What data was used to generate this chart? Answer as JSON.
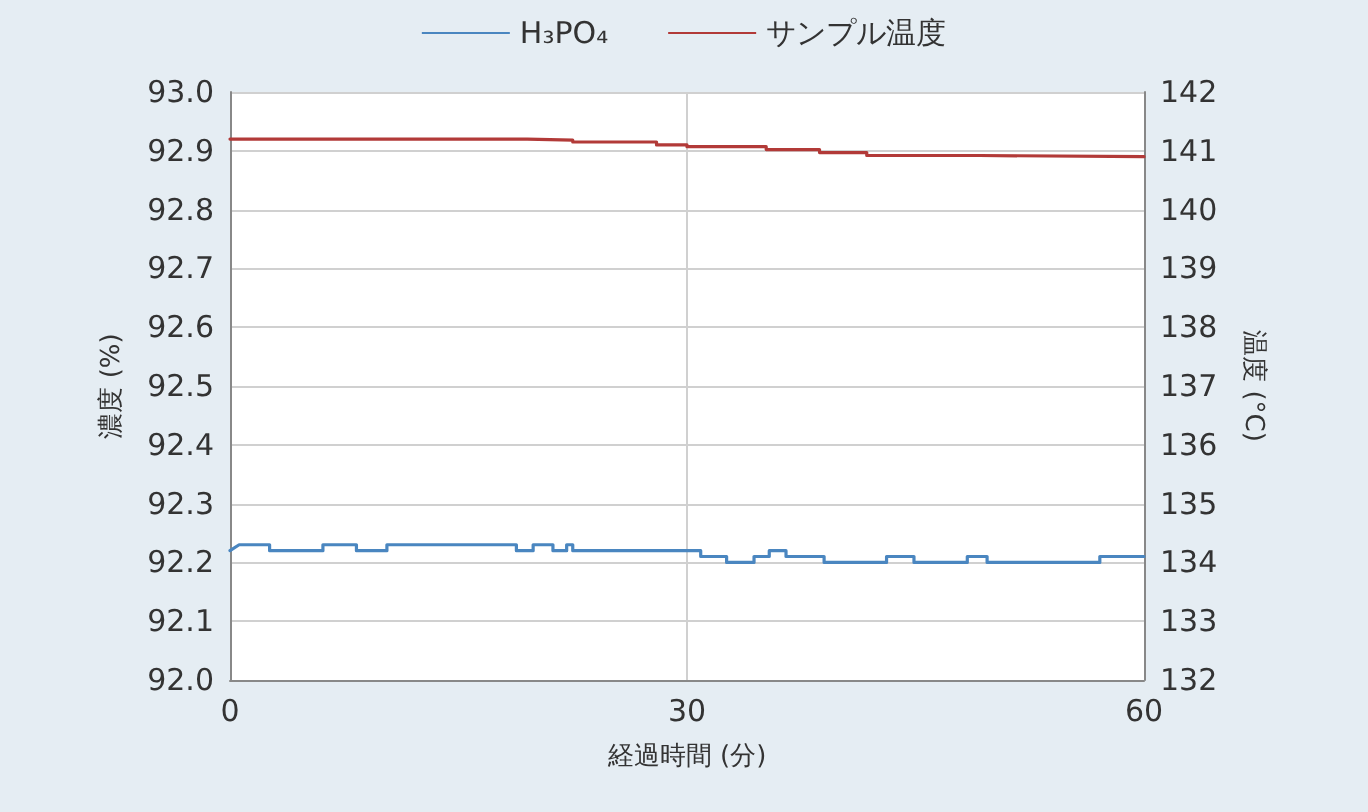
{
  "chart_data": {
    "type": "line",
    "xlabel": "経過時間 (分)",
    "ylabel": "濃度 (%)",
    "y2label": "温度 (°C)",
    "xlim": [
      0,
      60
    ],
    "xticks": [
      0,
      30,
      60
    ],
    "ylim": [
      92.0,
      93.0
    ],
    "yticks": [
      {
        "value": 92.0,
        "label": "92.0"
      },
      92.1,
      92.2,
      92.3,
      92.4,
      92.5,
      92.6,
      92.7,
      92.8,
      92.9,
      {
        "value": 93.0,
        "label": "93.0"
      }
    ],
    "y2lim": [
      132,
      142
    ],
    "y2ticks": [
      132,
      133,
      134,
      135,
      136,
      137,
      138,
      139,
      140,
      141,
      142
    ],
    "grid": true,
    "legend": "top",
    "marker": "none",
    "line_style": "solid",
    "series": [
      {
        "name": "H₃PO₄",
        "color": "#4a86c0",
        "x": [
          0,
          0.6,
          2.6,
          2.6,
          6.1,
          6.1,
          8.3,
          8.3,
          10.3,
          10.3,
          18.8,
          18.8,
          19.9,
          19.9,
          21.2,
          21.2,
          22.1,
          22.1,
          22.5,
          22.5,
          30.9,
          30.9,
          32.6,
          32.6,
          34.4,
          34.4,
          35.4,
          35.4,
          36.5,
          36.5,
          39.0,
          39.0,
          43.1,
          43.1,
          44.9,
          44.9,
          48.4,
          48.4,
          49.7,
          49.7,
          57.1,
          57.1,
          59.7,
          60
        ],
        "values": [
          92.22,
          92.23,
          92.23,
          92.22,
          92.22,
          92.23,
          92.23,
          92.22,
          92.22,
          92.23,
          92.23,
          92.22,
          92.22,
          92.23,
          92.23,
          92.22,
          92.22,
          92.23,
          92.23,
          92.22,
          92.22,
          92.21,
          92.21,
          92.2,
          92.2,
          92.21,
          92.21,
          92.22,
          92.22,
          92.21,
          92.21,
          92.2,
          92.2,
          92.21,
          92.21,
          92.2,
          92.2,
          92.21,
          92.21,
          92.2,
          92.2,
          92.21,
          92.21,
          92.21
        ]
      },
      {
        "name": "サンプル温度",
        "color": "#b23a38",
        "axis": "y2",
        "x": [
          0,
          19.5,
          19.5,
          22.5,
          22.5,
          28.0,
          28.0,
          30.0,
          30.0,
          35.2,
          35.2,
          38.7,
          38.7,
          41.8,
          41.8,
          49.2,
          49.2,
          60
        ],
        "values": [
          141.2,
          141.2,
          141.18,
          141.18,
          141.15,
          141.15,
          141.1,
          141.1,
          141.07,
          141.07,
          141.02,
          141.02,
          140.97,
          140.97,
          140.92,
          140.92,
          140.9,
          140.9
        ]
      }
    ]
  }
}
